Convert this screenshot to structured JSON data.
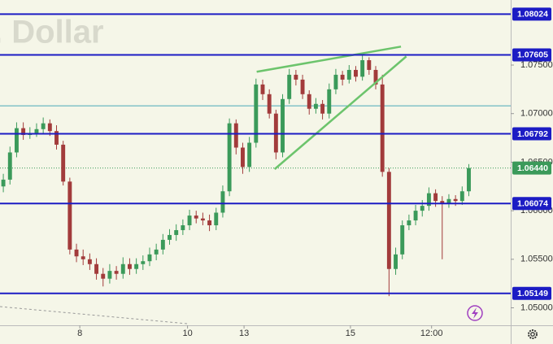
{
  "chart_data": {
    "type": "candlestick",
    "watermark": ". Dollar",
    "x": [
      0,
      1,
      2,
      3,
      4,
      5,
      6,
      7,
      8,
      9,
      10,
      11,
      12,
      13,
      14,
      15,
      16,
      17,
      18,
      19,
      20,
      21,
      22,
      23,
      24,
      25,
      26,
      27,
      28,
      29,
      30,
      31,
      32,
      33,
      34,
      35,
      36,
      37,
      38,
      39,
      40,
      41,
      42,
      43,
      44,
      45,
      46,
      47,
      48,
      49,
      50,
      51,
      52,
      53,
      54,
      55,
      56,
      57,
      58,
      59,
      60,
      61,
      62,
      63,
      64,
      65,
      66,
      67,
      68,
      69,
      70
    ],
    "open": [
      1.0625,
      1.0632,
      1.066,
      1.0685,
      1.0678,
      1.068,
      1.0684,
      1.069,
      1.0682,
      1.0668,
      1.063,
      1.056,
      1.0553,
      1.055,
      1.0545,
      1.0535,
      1.053,
      1.0538,
      1.0535,
      1.0545,
      1.054,
      1.0545,
      1.0548,
      1.0555,
      1.056,
      1.057,
      1.0575,
      1.058,
      1.0585,
      1.0595,
      1.0592,
      1.059,
      1.0585,
      1.0598,
      1.062,
      1.069,
      1.0665,
      1.0645,
      1.067,
      1.073,
      1.072,
      1.07,
      1.066,
      1.0715,
      1.074,
      1.0735,
      1.072,
      1.0705,
      1.071,
      1.07,
      1.0725,
      1.074,
      1.0735,
      1.0745,
      1.0738,
      1.0755,
      1.0745,
      1.073,
      1.064,
      1.054,
      1.0555,
      1.0585,
      1.059,
      1.06,
      1.0605,
      1.0618,
      1.061,
      1.0608,
      1.0612,
      1.061,
      1.062
    ],
    "high": [
      1.0638,
      1.0666,
      1.0691,
      1.0691,
      1.0686,
      1.069,
      1.0696,
      1.0694,
      1.0688,
      1.0672,
      1.0634,
      1.0566,
      1.056,
      1.0556,
      1.0551,
      1.0541,
      1.0545,
      1.0543,
      1.0552,
      1.0551,
      1.0551,
      1.0554,
      1.0562,
      1.0566,
      1.0576,
      1.0581,
      1.0586,
      1.0591,
      1.0601,
      1.06,
      1.0598,
      1.0596,
      1.0603,
      1.0626,
      1.0695,
      1.0694,
      1.067,
      1.0676,
      1.0736,
      1.0735,
      1.0725,
      1.0704,
      1.072,
      1.0746,
      1.0745,
      1.074,
      1.0724,
      1.0716,
      1.0714,
      1.0731,
      1.0746,
      1.0744,
      1.075,
      1.0749,
      1.076,
      1.0758,
      1.0749,
      1.074,
      1.0644,
      1.0562,
      1.059,
      1.0596,
      1.0606,
      1.0611,
      1.0624,
      1.0622,
      1.0615,
      1.0617,
      1.0616,
      1.0625,
      1.0648
    ],
    "low": [
      1.0619,
      1.0627,
      1.0655,
      1.0673,
      1.0674,
      1.0676,
      1.0679,
      1.0677,
      1.0663,
      1.0626,
      1.0555,
      1.0547,
      1.0544,
      1.0539,
      1.0529,
      1.0522,
      1.0525,
      1.0529,
      1.053,
      1.0534,
      1.0535,
      1.0539,
      1.0543,
      1.0549,
      1.0555,
      1.0565,
      1.0569,
      1.0575,
      1.058,
      1.0587,
      1.0585,
      1.0579,
      1.058,
      1.0593,
      1.0615,
      1.0658,
      1.0638,
      1.064,
      1.0665,
      1.0714,
      1.0695,
      1.0653,
      1.0655,
      1.071,
      1.0729,
      1.0715,
      1.0699,
      1.07,
      1.0694,
      1.0695,
      1.072,
      1.0729,
      1.0731,
      1.0733,
      1.0734,
      1.074,
      1.0725,
      1.0635,
      1.0512,
      1.0534,
      1.055,
      1.058,
      1.0585,
      1.0594,
      1.06,
      1.0604,
      1.055,
      1.0603,
      1.0605,
      1.0606,
      1.0615
    ],
    "close": [
      1.0632,
      1.066,
      1.0685,
      1.0678,
      1.068,
      1.0684,
      1.069,
      1.0682,
      1.0668,
      1.063,
      1.056,
      1.0553,
      1.055,
      1.0545,
      1.0535,
      1.053,
      1.0538,
      1.0535,
      1.0545,
      1.054,
      1.0545,
      1.0548,
      1.0555,
      1.056,
      1.057,
      1.0575,
      1.058,
      1.0585,
      1.0595,
      1.0592,
      1.059,
      1.0585,
      1.0598,
      1.062,
      1.069,
      1.0665,
      1.0645,
      1.067,
      1.073,
      1.072,
      1.07,
      1.066,
      1.0715,
      1.074,
      1.0735,
      1.072,
      1.0705,
      1.071,
      1.07,
      1.0725,
      1.074,
      1.0735,
      1.0745,
      1.0738,
      1.0755,
      1.0745,
      1.073,
      1.064,
      1.054,
      1.0555,
      1.0585,
      1.059,
      1.06,
      1.0605,
      1.0618,
      1.061,
      1.0608,
      1.0612,
      1.061,
      1.062,
      1.0644
    ],
    "up_color": "#3b9a5a",
    "down_color": "#a23b3b",
    "xlim": [
      -0.5,
      76.3
    ],
    "ylim": [
      1.0482,
      1.0817
    ],
    "xticks": [
      {
        "value": 11.5,
        "label": "8"
      },
      {
        "value": 27.7,
        "label": "10"
      },
      {
        "value": 36.2,
        "label": "13"
      },
      {
        "value": 52.2,
        "label": "15"
      },
      {
        "value": 64.4,
        "label": "12:00"
      }
    ],
    "yticks": [
      {
        "value": 1.075,
        "label": "1.07500"
      },
      {
        "value": 1.07,
        "label": "1.07000"
      },
      {
        "value": 1.065,
        "label": "1.06500"
      },
      {
        "value": 1.06,
        "label": "1.06000"
      },
      {
        "value": 1.055,
        "label": "1.05500"
      },
      {
        "value": 1.05,
        "label": "1.05000"
      }
    ],
    "levels": [
      {
        "value": 1.08024,
        "label": "1.08024"
      },
      {
        "value": 1.07605,
        "label": "1.07605"
      },
      {
        "value": 1.06792,
        "label": "1.06792"
      },
      {
        "value": 1.06074,
        "label": "1.06074"
      },
      {
        "value": 1.05149,
        "label": "1.05149"
      }
    ],
    "level_color": "#1c1cc4",
    "reference_line": 1.0708,
    "reference_color": "#4aa9b8",
    "last_price": {
      "value": 1.0644,
      "label": "1.06440"
    },
    "last_price_color": "#3b9a5a",
    "trendlines": [
      {
        "x": [
          38.1,
          59.8
        ],
        "y": [
          1.07431,
          1.0769
        ]
      },
      {
        "x": [
          40.8,
          60.6
        ],
        "y": [
          1.06428,
          1.07589
        ]
      }
    ],
    "trendline_color": "#6cc46c"
  }
}
